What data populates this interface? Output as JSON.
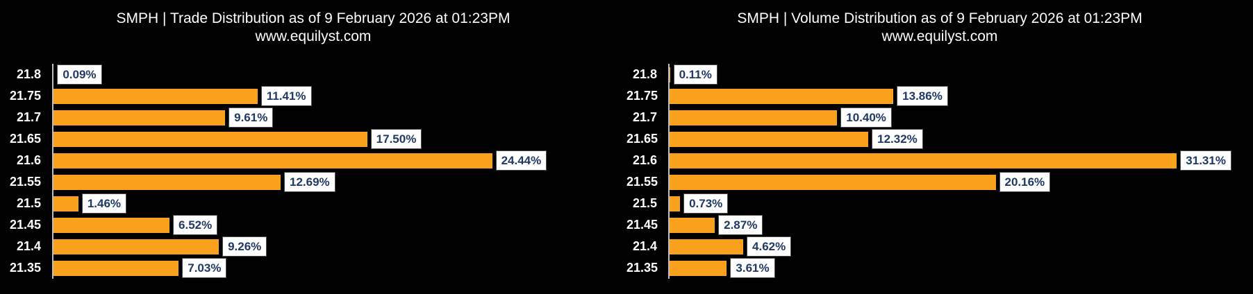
{
  "colors": {
    "background": "#000000",
    "bar": "#F9A11C",
    "value_text": "#1F3864",
    "value_box_bg": "#FFFFFF",
    "value_box_border": "#4D4D4D",
    "axis_line": "#BFBFBF",
    "title_text": "#FFFFFF"
  },
  "chart_data": [
    {
      "type": "bar",
      "orientation": "horizontal",
      "title": "SMPH | Trade Distribution as of 9 February 2026 at 01:23PM",
      "subtitle": "www.equilyst.com",
      "categories": [
        "21.8",
        "21.75",
        "21.7",
        "21.65",
        "21.6",
        "21.55",
        "21.5",
        "21.45",
        "21.4",
        "21.35"
      ],
      "values": [
        0.09,
        11.41,
        9.61,
        17.5,
        24.44,
        12.69,
        1.46,
        6.52,
        9.26,
        7.03
      ],
      "value_labels": [
        "0.09%",
        "11.41%",
        "9.61%",
        "17.50%",
        "24.44%",
        "12.69%",
        "1.46%",
        "6.52%",
        "9.26%",
        "7.03%"
      ],
      "xlim": [
        0,
        31.9
      ],
      "xlabel": "",
      "ylabel": "",
      "grid": false,
      "legend": false
    },
    {
      "type": "bar",
      "orientation": "horizontal",
      "title": "SMPH | Volume Distribution as of 9 February 2026 at 01:23PM",
      "subtitle": "www.equilyst.com",
      "categories": [
        "21.8",
        "21.75",
        "21.7",
        "21.65",
        "21.6",
        "21.55",
        "21.5",
        "21.45",
        "21.4",
        "21.35"
      ],
      "values": [
        0.11,
        13.86,
        10.4,
        12.32,
        31.31,
        20.16,
        0.73,
        2.87,
        4.62,
        3.61
      ],
      "value_labels": [
        "0.11%",
        "13.86%",
        "10.40%",
        "12.32%",
        "31.31%",
        "20.16%",
        "0.73%",
        "2.87%",
        "4.62%",
        "3.61%"
      ],
      "xlim": [
        0,
        36
      ],
      "xlabel": "",
      "ylabel": "",
      "grid": false,
      "legend": false
    }
  ]
}
